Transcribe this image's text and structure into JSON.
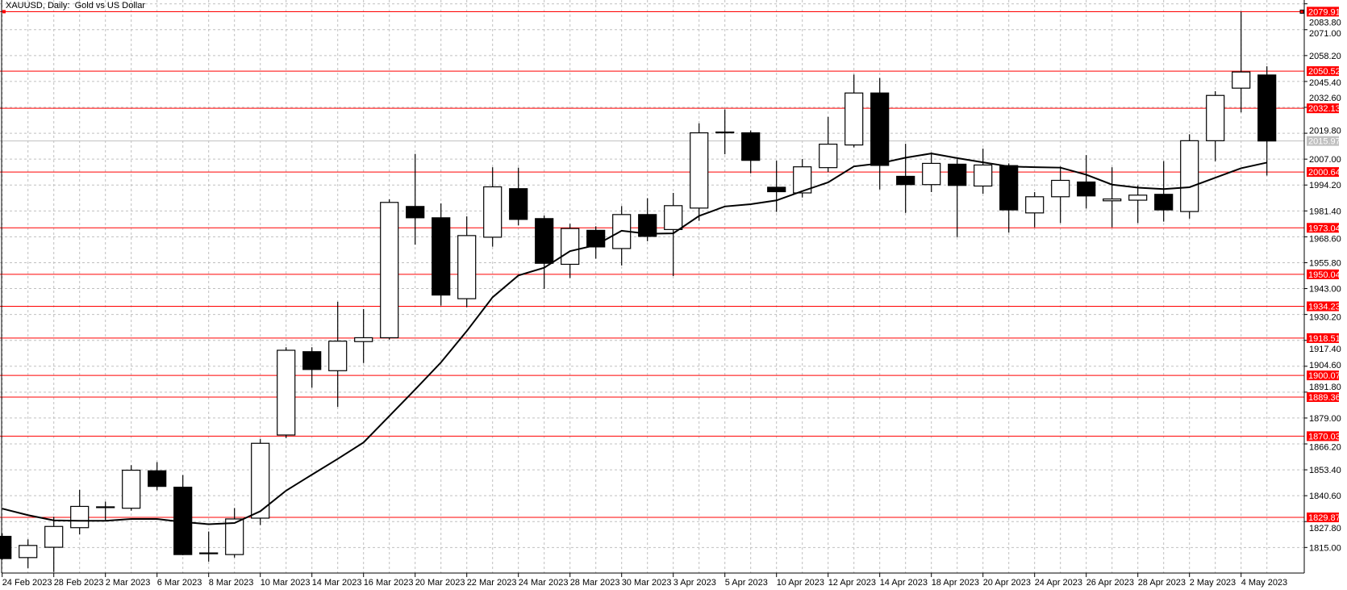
{
  "chart_data": {
    "type": "candlestick",
    "title": "XAUUSD, Daily:  Gold vs US Dollar",
    "grid": true,
    "ylim": [
      1808,
      2083.8
    ],
    "yticks": [
      "2083.80",
      "2071.00",
      "2058.20",
      "2045.40",
      "2032.60",
      "2019.80",
      "2007.00",
      "1994.20",
      "1981.40",
      "1968.60",
      "1955.80",
      "1943.00",
      "1930.20",
      "1917.40",
      "1904.60",
      "1891.80",
      "1879.00",
      "1866.20",
      "1853.40",
      "1840.60",
      "1827.80",
      "1815.00"
    ],
    "dates": [
      "24 Feb 2023",
      "27 Feb 2023",
      "28 Feb 2023",
      "1 Mar 2023",
      "2 Mar 2023",
      "3 Mar 2023",
      "6 Mar 2023",
      "7 Mar 2023",
      "8 Mar 2023",
      "9 Mar 2023",
      "10 Mar 2023",
      "13 Mar 2023",
      "14 Mar 2023",
      "15 Mar 2023",
      "16 Mar 2023",
      "17 Mar 2023",
      "20 Mar 2023",
      "21 Mar 2023",
      "22 Mar 2023",
      "23 Mar 2023",
      "24 Mar 2023",
      "27 Mar 2023",
      "28 Mar 2023",
      "29 Mar 2023",
      "30 Mar 2023",
      "31 Mar 2023",
      "3 Apr 2023",
      "4 Apr 2023",
      "5 Apr 2023",
      "6 Apr 2023",
      "10 Apr 2023",
      "11 Apr 2023",
      "12 Apr 2023",
      "13 Apr 2023",
      "14 Apr 2023",
      "17 Apr 2023",
      "18 Apr 2023",
      "19 Apr 2023",
      "20 Apr 2023",
      "21 Apr 2023",
      "24 Apr 2023",
      "25 Apr 2023",
      "26 Apr 2023",
      "27 Apr 2023",
      "28 Apr 2023",
      "1 May 2023",
      "2 May 2023",
      "3 May 2023",
      "4 May 2023",
      "5 May 2023"
    ],
    "xtick_labels": [
      "24 Feb 2023",
      "28 Feb 2023",
      "2 Mar 2023",
      "6 Mar 2023",
      "8 Mar 2023",
      "10 Mar 2023",
      "14 Mar 2023",
      "16 Mar 2023",
      "20 Mar 2023",
      "22 Mar 2023",
      "24 Mar 2023",
      "28 Mar 2023",
      "30 Mar 2023",
      "3 Apr 2023",
      "5 Apr 2023",
      "10 Apr 2023",
      "12 Apr 2023",
      "14 Apr 2023",
      "18 Apr 2023",
      "20 Apr 2023",
      "24 Apr 2023",
      "26 Apr 2023",
      "28 Apr 2023",
      "2 May 2023",
      "4 May 2023"
    ],
    "ohlc": [
      [
        1820.5,
        1822.0,
        1808.9,
        1809.5
      ],
      [
        1810.0,
        1819.0,
        1804.8,
        1816.0
      ],
      [
        1815.1,
        1830.2,
        1802.9,
        1825.4
      ],
      [
        1824.8,
        1843.5,
        1821.5,
        1835.3
      ],
      [
        1834.7,
        1837.7,
        1828.6,
        1835.1
      ],
      [
        1834.4,
        1855.7,
        1833.2,
        1853.2
      ],
      [
        1852.9,
        1857.2,
        1843.3,
        1845.2
      ],
      [
        1844.8,
        1850.8,
        1811.2,
        1811.5
      ],
      [
        1812.3,
        1822.9,
        1808.0,
        1812.1
      ],
      [
        1811.5,
        1834.5,
        1810.0,
        1829.1
      ],
      [
        1829.5,
        1868.7,
        1826.1,
        1866.5
      ],
      [
        1870.6,
        1914.0,
        1869.1,
        1912.5
      ],
      [
        1911.8,
        1914.0,
        1894.0,
        1903.0
      ],
      [
        1902.4,
        1936.5,
        1884.5,
        1917.0
      ],
      [
        1916.8,
        1932.9,
        1906.2,
        1918.7
      ],
      [
        1918.7,
        1987.1,
        1917.8,
        1985.6
      ],
      [
        1983.6,
        2009.6,
        1964.7,
        1978.0
      ],
      [
        1978.0,
        1985.1,
        1934.6,
        1939.8
      ],
      [
        1938.0,
        1978.7,
        1933.8,
        1969.2
      ],
      [
        1968.4,
        2003.0,
        1963.7,
        1993.3
      ],
      [
        1992.4,
        2002.8,
        1974.2,
        1977.2
      ],
      [
        1977.6,
        1979.1,
        1942.8,
        1955.5
      ],
      [
        1955.0,
        1975.0,
        1948.2,
        1972.7
      ],
      [
        1971.8,
        1973.8,
        1957.8,
        1963.6
      ],
      [
        1962.8,
        1983.8,
        1954.4,
        1979.6
      ],
      [
        1979.6,
        1987.7,
        1966.4,
        1968.8
      ],
      [
        1972.2,
        1990.3,
        1949.2,
        1984.0
      ],
      [
        1982.8,
        2024.7,
        1976.5,
        2020.0
      ],
      [
        2020.2,
        2031.6,
        2009.4,
        2020.4
      ],
      [
        2020.0,
        2021.2,
        2000.0,
        2006.4
      ],
      [
        1993.1,
        2006.2,
        1980.9,
        1990.9
      ],
      [
        1990.3,
        2007.1,
        1988.0,
        2003.2
      ],
      [
        2002.8,
        2027.9,
        2000.6,
        2014.4
      ],
      [
        2014.0,
        2048.8,
        2012.8,
        2039.7
      ],
      [
        2039.7,
        2047.1,
        1992.0,
        2003.9
      ],
      [
        1998.5,
        2014.6,
        1980.4,
        1994.4
      ],
      [
        1994.4,
        2010.3,
        1990.7,
        2004.9
      ],
      [
        2004.5,
        2007.1,
        1968.4,
        1994.0
      ],
      [
        1993.7,
        2012.2,
        1989.9,
        2004.1
      ],
      [
        2003.8,
        2004.9,
        1970.7,
        1981.9
      ],
      [
        1980.4,
        1990.7,
        1973.3,
        1988.4
      ],
      [
        1988.4,
        2003.4,
        1975.4,
        1996.5
      ],
      [
        1995.7,
        2009.0,
        1982.6,
        1988.8
      ],
      [
        1986.4,
        2003.0,
        1973.3,
        1987.3
      ],
      [
        1986.7,
        1994.0,
        1975.4,
        1989.2
      ],
      [
        1989.6,
        2006.0,
        1976.1,
        1981.9
      ],
      [
        1981.1,
        2019.3,
        1977.6,
        2016.1
      ],
      [
        2016.1,
        2040.6,
        2006.0,
        2038.5
      ],
      [
        2042.1,
        2079.9,
        2030.1,
        2050.1
      ],
      [
        2048.6,
        2052.9,
        1998.9,
        2015.97
      ]
    ],
    "moving_average": [
      1834.2,
      1831.0,
      1828.4,
      1828.2,
      1828.2,
      1829.1,
      1829.1,
      1827.6,
      1826.5,
      1827.1,
      1832.9,
      1843.1,
      1851.0,
      1858.8,
      1866.9,
      1880.0,
      1893.1,
      1906.5,
      1922.0,
      1938.7,
      1949.5,
      1953.3,
      1961.5,
      1964.5,
      1971.6,
      1970.1,
      1970.3,
      1978.9,
      1983.6,
      1984.7,
      1986.6,
      1991.2,
      1995.5,
      2003.4,
      2004.9,
      2007.7,
      2009.8,
      2007.5,
      2005.4,
      2003.4,
      2003.0,
      2002.8,
      1999.3,
      1994.4,
      1992.9,
      1992.2,
      1993.1,
      1997.8,
      2002.5,
      2005.3
    ],
    "levels": [
      "2079.91",
      "2050.52",
      "2032.13",
      "2000.64",
      "1973.04",
      "1950.04",
      "1934.23",
      "1918.51",
      "1900.07",
      "1889.36",
      "1870.03",
      "1829.87"
    ],
    "current_price": "2015.97",
    "colors": {
      "level": "#ff0000",
      "grid": "#c0c0c0",
      "bull_body": "#ffffff",
      "bear_body": "#000000",
      "candle_outline": "#000000",
      "ma": "#000000",
      "current_price": "#c0c0c0"
    }
  }
}
